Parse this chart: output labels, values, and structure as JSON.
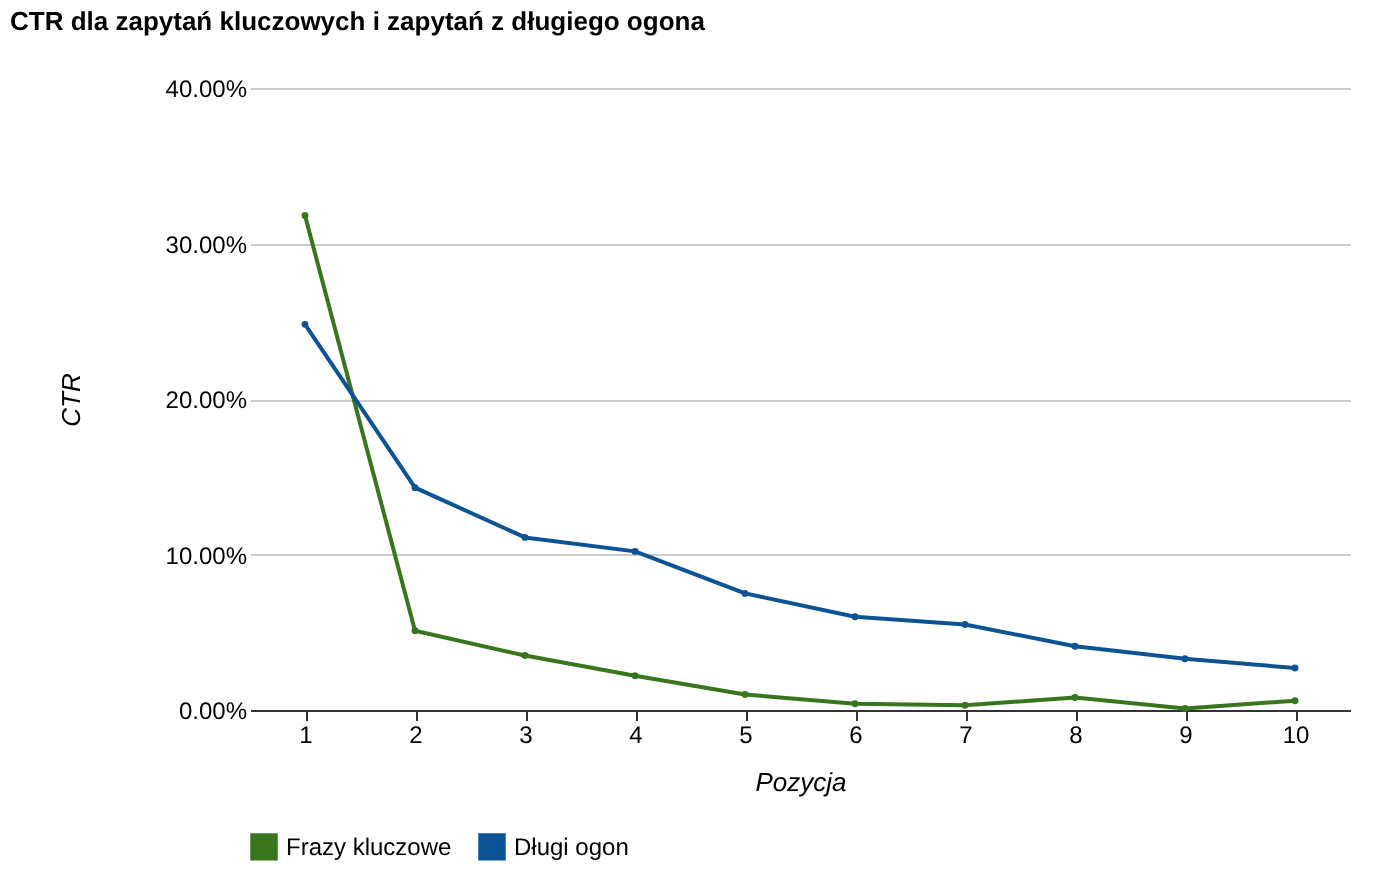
{
  "chart_data": {
    "type": "line",
    "title": "CTR dla zapytań kluczowych i zapytań z długiego ogona",
    "xlabel": "Pozycja",
    "ylabel": "CTR",
    "categories": [
      "1",
      "2",
      "3",
      "4",
      "5",
      "6",
      "7",
      "8",
      "9",
      "10"
    ],
    "series": [
      {
        "name": "Frazy kluczowe",
        "color": "#38761d",
        "values": [
          31.8,
          5.1,
          3.5,
          2.2,
          1.0,
          0.4,
          0.3,
          0.8,
          0.1,
          0.6
        ]
      },
      {
        "name": "Długi ogon",
        "color": "#0b5394",
        "values": [
          24.8,
          14.3,
          11.1,
          10.2,
          7.5,
          6.0,
          5.5,
          4.1,
          3.3,
          2.7
        ]
      }
    ],
    "ylim": [
      0,
      40
    ],
    "yticks": [
      {
        "value": 0,
        "label": "0.00%"
      },
      {
        "value": 10,
        "label": "10.00%"
      },
      {
        "value": 20,
        "label": "20.00%"
      },
      {
        "value": 30,
        "label": "30.00%"
      },
      {
        "value": 40,
        "label": "40.00%"
      }
    ],
    "grid": "y",
    "legend": "bottom",
    "marker": "circle",
    "line_style": "solid"
  }
}
